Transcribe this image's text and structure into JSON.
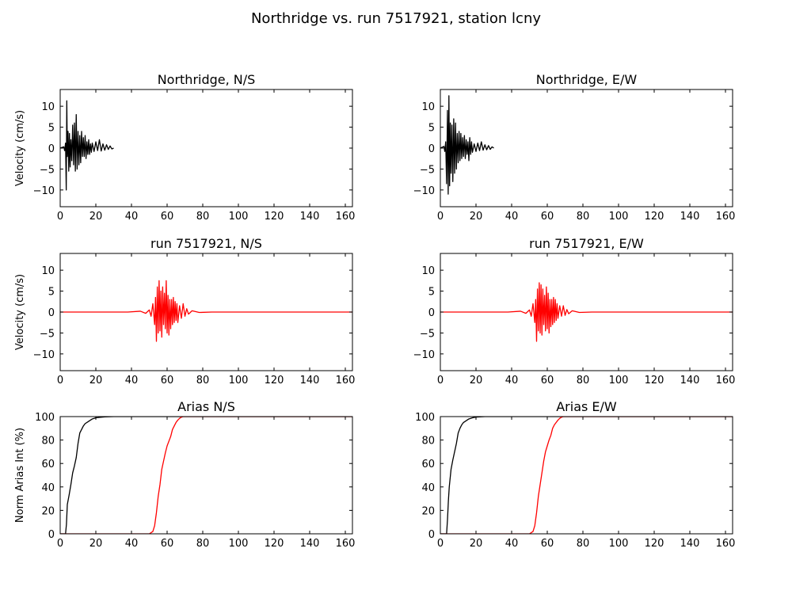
{
  "figure": {
    "title": "Northridge vs. run 7517921, station lcny",
    "colors": {
      "observed": "#000000",
      "simulated": "#ff0000"
    }
  },
  "chart_data": [
    {
      "type": "line",
      "title": "Northridge, N/S",
      "xlabel": "",
      "ylabel": "Velocity (cm/s)",
      "xlim": [
        0,
        164
      ],
      "ylim": [
        -14,
        14
      ],
      "xticks": [
        0,
        20,
        40,
        60,
        80,
        100,
        120,
        140,
        160
      ],
      "yticks": [
        -10,
        -5,
        0,
        5,
        10
      ],
      "series": [
        {
          "color": "#000000",
          "x": [
            0,
            2,
            2.5,
            3,
            3.4,
            3.7,
            4,
            4.4,
            4.8,
            5.2,
            5.6,
            6,
            6.5,
            7,
            7.5,
            8,
            8.5,
            9,
            9.5,
            10,
            10.5,
            11,
            11.5,
            12,
            12.5,
            13,
            13.5,
            14,
            14.5,
            15,
            15.5,
            16,
            16.5,
            17,
            17.5,
            18,
            19,
            20,
            21,
            22,
            23,
            24,
            25,
            26,
            27,
            28,
            29,
            30
          ],
          "y": [
            0,
            0.3,
            -0.6,
            1.2,
            -10,
            11.3,
            -2,
            4,
            -5.5,
            3.5,
            -4.5,
            2,
            -3,
            5.5,
            -4,
            6,
            -5.5,
            8,
            -5,
            4,
            -4,
            3,
            -3.5,
            4,
            -2,
            2.5,
            -2,
            3,
            -2.5,
            1.5,
            -1.5,
            2,
            -1.5,
            1,
            -1,
            1.2,
            -0.8,
            1.5,
            -0.6,
            2,
            -0.7,
            1,
            -0.5,
            0.8,
            -0.3,
            0.5,
            -0.2,
            0
          ]
        }
      ]
    },
    {
      "type": "line",
      "title": "Northridge, E/W",
      "xlabel": "",
      "ylabel": "",
      "xlim": [
        0,
        164
      ],
      "ylim": [
        -14,
        14
      ],
      "xticks": [
        0,
        20,
        40,
        60,
        80,
        100,
        120,
        140,
        160
      ],
      "yticks": [
        -10,
        -5,
        0,
        5,
        10
      ],
      "series": [
        {
          "color": "#000000",
          "x": [
            0,
            2,
            2.5,
            3,
            3.5,
            4,
            4.4,
            4.8,
            5.2,
            5.6,
            6,
            6.5,
            7,
            7.5,
            8,
            8.5,
            9,
            9.5,
            10,
            10.5,
            11,
            11.5,
            12,
            12.5,
            13,
            13.5,
            14,
            14.5,
            15,
            15.5,
            16,
            16.5,
            17,
            17.5,
            18,
            19,
            20,
            21,
            22,
            23,
            24,
            25,
            26,
            27,
            28,
            29,
            30
          ],
          "y": [
            0,
            0.4,
            -0.8,
            1.5,
            -8.5,
            9,
            -11,
            12.5,
            -9,
            6,
            -6,
            5.5,
            -8,
            7,
            -6,
            6,
            -5,
            3.5,
            -3.5,
            4,
            -3,
            3.5,
            -2.5,
            2.5,
            -2,
            3,
            -2.5,
            2,
            -1.5,
            1.5,
            -3,
            2.5,
            -1.5,
            1.5,
            -1,
            1,
            -0.8,
            1.2,
            -0.6,
            1.5,
            -0.5,
            0.8,
            -0.4,
            0.6,
            -0.3,
            0.3,
            0
          ]
        }
      ]
    },
    {
      "type": "line",
      "title": "run 7517921, N/S",
      "xlabel": "",
      "ylabel": "Velocity (cm/s)",
      "xlim": [
        0,
        164
      ],
      "ylim": [
        -14,
        14
      ],
      "xticks": [
        0,
        20,
        40,
        60,
        80,
        100,
        120,
        140,
        160
      ],
      "yticks": [
        -10,
        -5,
        0,
        5,
        10
      ],
      "series": [
        {
          "color": "#ff0000",
          "x": [
            0,
            10,
            20,
            30,
            38,
            45,
            48,
            50,
            51,
            52,
            53,
            53.5,
            54,
            54.5,
            55,
            55.5,
            56,
            56.5,
            57,
            57.5,
            58,
            58.5,
            59,
            59.5,
            60,
            60.5,
            61,
            61.5,
            62,
            62.5,
            63,
            63.5,
            64,
            64.5,
            65,
            65.5,
            66,
            67,
            68,
            69,
            70,
            71,
            72,
            74,
            78,
            85,
            100,
            120,
            140,
            164
          ],
          "y": [
            0,
            0,
            0,
            0,
            0,
            0.2,
            -0.3,
            0.5,
            -1,
            2,
            -3,
            3.5,
            -7,
            6,
            -5,
            7.5,
            -4.5,
            5,
            -6,
            6,
            -3,
            4.5,
            -4,
            7.5,
            -5,
            4,
            -5.5,
            3,
            -4,
            3,
            -3,
            3.5,
            -2.5,
            2.5,
            -2,
            2,
            -2.5,
            1.5,
            -1.5,
            2,
            -1,
            0.8,
            -0.5,
            0.3,
            -0.1,
            0,
            0,
            0,
            0,
            0
          ]
        }
      ]
    },
    {
      "type": "line",
      "title": "run 7517921, E/W",
      "xlabel": "",
      "ylabel": "",
      "xlim": [
        0,
        164
      ],
      "ylim": [
        -14,
        14
      ],
      "xticks": [
        0,
        20,
        40,
        60,
        80,
        100,
        120,
        140,
        160
      ],
      "yticks": [
        -10,
        -5,
        0,
        5,
        10
      ],
      "series": [
        {
          "color": "#ff0000",
          "x": [
            0,
            10,
            20,
            30,
            38,
            45,
            48,
            50,
            51,
            52,
            53,
            53.5,
            54,
            54.5,
            55,
            55.5,
            56,
            56.5,
            57,
            57.5,
            58,
            58.5,
            59,
            59.5,
            60,
            60.5,
            61,
            61.5,
            62,
            62.5,
            63,
            63.5,
            64,
            64.5,
            65,
            65.5,
            66,
            67,
            68,
            69,
            70,
            71,
            72,
            74,
            78,
            85,
            100,
            120,
            140,
            164
          ],
          "y": [
            0,
            0,
            0,
            0,
            0,
            0.2,
            -0.3,
            0.5,
            -1,
            2,
            -2.5,
            3,
            -7,
            5.5,
            -4.5,
            7,
            -5,
            6.5,
            -5.5,
            5.5,
            -3,
            4,
            -4.5,
            6,
            -4,
            4.5,
            -5,
            3,
            -3.5,
            3,
            -3,
            3.5,
            -2.5,
            3,
            -2,
            2,
            -1.5,
            1.5,
            -1,
            1.5,
            -0.8,
            0.6,
            -0.4,
            0.3,
            -0.1,
            0,
            0,
            0,
            0,
            0
          ]
        }
      ]
    },
    {
      "type": "line",
      "title": "Arias N/S",
      "xlabel": "",
      "ylabel": "Norm Arias Int (%)",
      "xlim": [
        0,
        164
      ],
      "ylim": [
        0,
        100
      ],
      "xticks": [
        0,
        20,
        40,
        60,
        80,
        100,
        120,
        140,
        160
      ],
      "yticks": [
        0,
        20,
        40,
        60,
        80,
        100
      ],
      "series": [
        {
          "color": "#000000",
          "x": [
            0,
            3,
            3.5,
            4,
            5,
            6,
            7,
            8,
            9,
            10,
            11,
            12,
            13,
            14,
            16,
            18,
            20,
            25,
            30,
            164
          ],
          "y": [
            0,
            0,
            8,
            25,
            33,
            42,
            52,
            58,
            65,
            77,
            86,
            89,
            92,
            94,
            96,
            98,
            99,
            99.8,
            100,
            100
          ]
        },
        {
          "color": "#ff0000",
          "x": [
            0,
            50,
            52,
            53,
            54,
            55,
            56,
            57,
            58,
            59,
            60,
            61,
            62,
            63,
            64,
            65,
            66,
            67,
            68,
            69,
            70,
            164
          ],
          "y": [
            0,
            0,
            2,
            7,
            18,
            32,
            42,
            55,
            62,
            69,
            75,
            79,
            83,
            89,
            92,
            95,
            97,
            98.5,
            99.5,
            100,
            100,
            100
          ]
        }
      ]
    },
    {
      "type": "line",
      "title": "Arias E/W",
      "xlabel": "",
      "ylabel": "",
      "xlim": [
        0,
        164
      ],
      "ylim": [
        0,
        100
      ],
      "xticks": [
        0,
        20,
        40,
        60,
        80,
        100,
        120,
        140,
        160
      ],
      "yticks": [
        0,
        20,
        40,
        60,
        80,
        100
      ],
      "series": [
        {
          "color": "#000000",
          "x": [
            0,
            3.5,
            4,
            4.5,
            5,
            6,
            7,
            8,
            9,
            10,
            11,
            12,
            13,
            14,
            16,
            18,
            20,
            25,
            30,
            164
          ],
          "y": [
            0,
            0,
            12,
            28,
            40,
            55,
            63,
            70,
            77,
            86,
            90,
            93,
            95,
            96,
            98,
            99,
            99.6,
            100,
            100,
            100
          ]
        },
        {
          "color": "#ff0000",
          "x": [
            0,
            50,
            52,
            53,
            54,
            55,
            56,
            57,
            58,
            59,
            60,
            61,
            62,
            63,
            64,
            65,
            66,
            67,
            68,
            69,
            70,
            164
          ],
          "y": [
            0,
            0,
            2,
            7,
            18,
            32,
            42,
            52,
            62,
            70,
            75,
            80,
            84,
            90,
            93,
            95,
            97,
            98.5,
            99.5,
            100,
            100,
            100
          ]
        }
      ]
    }
  ]
}
